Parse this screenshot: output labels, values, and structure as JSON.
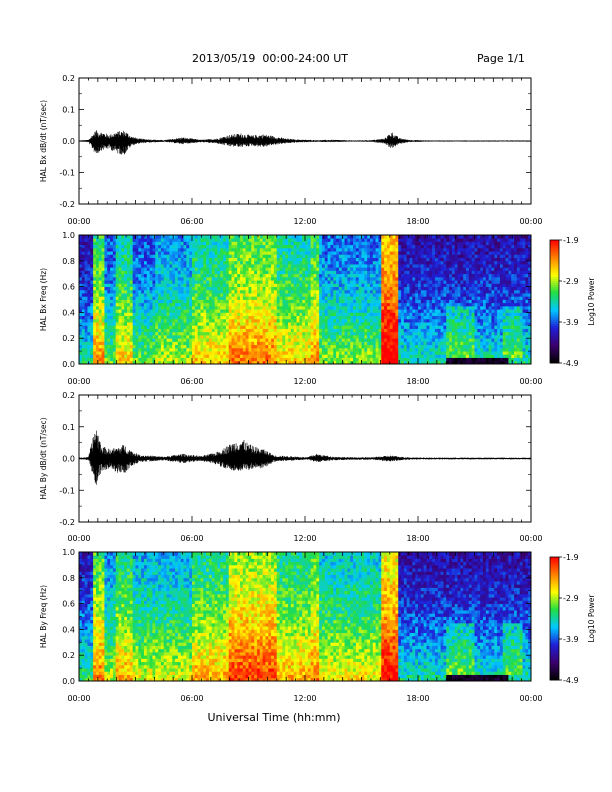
{
  "header": {
    "title": "2013/05/19  00:00-24:00 UT",
    "page": "Page 1/1"
  },
  "chart_data": [
    {
      "type": "line",
      "ylabel": "HAL Bx dB/dt (nT/sec)",
      "ylim": [
        -0.2,
        0.2
      ],
      "yticks": [
        "0.2",
        "0.1",
        "0.0",
        "-0.1",
        "-0.2"
      ],
      "xlim": [
        "00:00",
        "24:00"
      ],
      "xticks": [
        "00:00",
        "06:00",
        "12:00",
        "18:00",
        "00:00"
      ],
      "envelope": {
        "x_hours": [
          0,
          0.5,
          0.9,
          1.2,
          1.6,
          2.0,
          2.4,
          2.8,
          3.2,
          3.6,
          4.5,
          5.5,
          6.5,
          7.3,
          8.0,
          8.6,
          9.2,
          9.8,
          10.4,
          11.0,
          11.6,
          12.1,
          12.6,
          13.5,
          14.5,
          15.5,
          16.2,
          16.6,
          17.0,
          17.5,
          18.5,
          20,
          22,
          24
        ],
        "max": [
          0.002,
          0.004,
          0.035,
          0.03,
          0.02,
          0.03,
          0.035,
          0.015,
          0.008,
          0.006,
          0.003,
          0.012,
          0.004,
          0.008,
          0.02,
          0.025,
          0.018,
          0.022,
          0.015,
          0.008,
          0.005,
          0.004,
          0.003,
          0.004,
          0.002,
          0.003,
          0.008,
          0.03,
          0.01,
          0.004,
          0.002,
          0.002,
          0.002,
          0.002
        ],
        "min": [
          -0.002,
          -0.004,
          -0.045,
          -0.03,
          -0.025,
          -0.04,
          -0.045,
          -0.015,
          -0.008,
          -0.006,
          -0.003,
          -0.01,
          -0.004,
          -0.008,
          -0.018,
          -0.02,
          -0.016,
          -0.02,
          -0.012,
          -0.008,
          -0.005,
          -0.004,
          -0.003,
          -0.004,
          -0.002,
          -0.003,
          -0.008,
          -0.025,
          -0.01,
          -0.004,
          -0.002,
          -0.002,
          -0.002,
          -0.002
        ]
      }
    },
    {
      "type": "heatmap",
      "ylabel": "HAL Bx Freq (Hz)",
      "ylim": [
        0.0,
        1.0
      ],
      "yticks": [
        "1.0",
        "0.8",
        "0.6",
        "0.4",
        "0.2",
        "0.0"
      ],
      "xlim": [
        "00:00",
        "24:00"
      ],
      "xticks": [
        "00:00",
        "06:00",
        "12:00",
        "18:00",
        "00:00"
      ],
      "colorbar": {
        "label": "Log10 Power",
        "ticks": [
          "-1.9",
          "-2.9",
          "-3.9",
          "-4.9"
        ],
        "range": [
          -4.9,
          -1.9
        ]
      },
      "bands_hours": [
        {
          "start": 0.0,
          "end": 0.8,
          "level": -3.9
        },
        {
          "start": 0.8,
          "end": 1.3,
          "level": -2.9
        },
        {
          "start": 1.3,
          "end": 2.0,
          "level": -3.6
        },
        {
          "start": 2.0,
          "end": 2.8,
          "level": -3.1
        },
        {
          "start": 2.8,
          "end": 4.0,
          "level": -3.6
        },
        {
          "start": 4.0,
          "end": 6.0,
          "level": -3.4
        },
        {
          "start": 6.0,
          "end": 8.0,
          "level": -3.1
        },
        {
          "start": 8.0,
          "end": 10.5,
          "level": -2.8
        },
        {
          "start": 10.5,
          "end": 12.3,
          "level": -3.1
        },
        {
          "start": 12.3,
          "end": 12.8,
          "level": -2.9
        },
        {
          "start": 12.8,
          "end": 16.0,
          "level": -3.5
        },
        {
          "start": 16.0,
          "end": 17.0,
          "level": -2.2
        },
        {
          "start": 17.0,
          "end": 24.0,
          "level": -3.9
        }
      ]
    },
    {
      "type": "line",
      "ylabel": "HAL By dB/dt (nT/sec)",
      "ylim": [
        -0.2,
        0.2
      ],
      "yticks": [
        "0.2",
        "0.1",
        "0.0",
        "-0.1",
        "-0.2"
      ],
      "xlim": [
        "00:00",
        "24:00"
      ],
      "xticks": [
        "00:00",
        "06:00",
        "12:00",
        "18:00",
        "00:00"
      ],
      "envelope": {
        "x_hours": [
          0,
          0.5,
          0.9,
          1.2,
          1.6,
          2.0,
          2.4,
          2.8,
          3.2,
          3.6,
          4.5,
          5.5,
          6.5,
          7.3,
          8.0,
          8.6,
          9.2,
          9.8,
          10.4,
          11.0,
          11.6,
          12.1,
          12.6,
          13.5,
          14.5,
          15.5,
          16.2,
          16.6,
          17.0,
          17.5,
          18.5,
          20,
          22,
          24
        ],
        "max": [
          0.003,
          0.005,
          0.11,
          0.04,
          0.03,
          0.035,
          0.045,
          0.025,
          0.012,
          0.01,
          0.006,
          0.015,
          0.008,
          0.02,
          0.045,
          0.065,
          0.04,
          0.03,
          0.01,
          0.008,
          0.006,
          0.004,
          0.015,
          0.006,
          0.004,
          0.004,
          0.008,
          0.01,
          0.006,
          0.004,
          0.003,
          0.003,
          0.003,
          0.003
        ],
        "min": [
          -0.003,
          -0.005,
          -0.09,
          -0.04,
          -0.035,
          -0.045,
          -0.05,
          -0.025,
          -0.012,
          -0.01,
          -0.006,
          -0.015,
          -0.008,
          -0.02,
          -0.04,
          -0.04,
          -0.035,
          -0.03,
          -0.01,
          -0.008,
          -0.006,
          -0.004,
          -0.012,
          -0.006,
          -0.004,
          -0.004,
          -0.008,
          -0.01,
          -0.006,
          -0.004,
          -0.003,
          -0.003,
          -0.003,
          -0.003
        ]
      }
    },
    {
      "type": "heatmap",
      "ylabel": "HAL By Freq (Hz)",
      "ylim": [
        0.0,
        1.0
      ],
      "yticks": [
        "1.0",
        "0.8",
        "0.6",
        "0.4",
        "0.2",
        "0.0"
      ],
      "xlim": [
        "00:00",
        "24:00"
      ],
      "xticks": [
        "00:00",
        "06:00",
        "12:00",
        "18:00",
        "00:00"
      ],
      "colorbar": {
        "label": "Log10 Power",
        "ticks": [
          "-1.9",
          "-2.9",
          "-3.9",
          "-4.9"
        ],
        "range": [
          -4.9,
          -1.9
        ]
      },
      "bands_hours": [
        {
          "start": 0.0,
          "end": 0.8,
          "level": -3.8
        },
        {
          "start": 0.8,
          "end": 1.3,
          "level": -2.8
        },
        {
          "start": 1.3,
          "end": 2.0,
          "level": -3.4
        },
        {
          "start": 2.0,
          "end": 2.8,
          "level": -3.0
        },
        {
          "start": 2.8,
          "end": 4.0,
          "level": -3.3
        },
        {
          "start": 4.0,
          "end": 6.0,
          "level": -3.3
        },
        {
          "start": 6.0,
          "end": 8.0,
          "level": -3.0
        },
        {
          "start": 8.0,
          "end": 10.5,
          "level": -2.6
        },
        {
          "start": 10.5,
          "end": 12.3,
          "level": -3.0
        },
        {
          "start": 12.3,
          "end": 12.8,
          "level": -2.8
        },
        {
          "start": 12.8,
          "end": 16.0,
          "level": -3.2
        },
        {
          "start": 16.0,
          "end": 17.0,
          "level": -2.4
        },
        {
          "start": 17.0,
          "end": 24.0,
          "level": -3.9
        }
      ]
    }
  ],
  "xaxis_label": "Universal Time (hh:mm)",
  "colors": {
    "trace": "#000000",
    "colormap": [
      "#000000",
      "#3b006e",
      "#1f1fd8",
      "#00c8ff",
      "#22dd44",
      "#ffff00",
      "#ff7f00",
      "#ff0000"
    ]
  }
}
